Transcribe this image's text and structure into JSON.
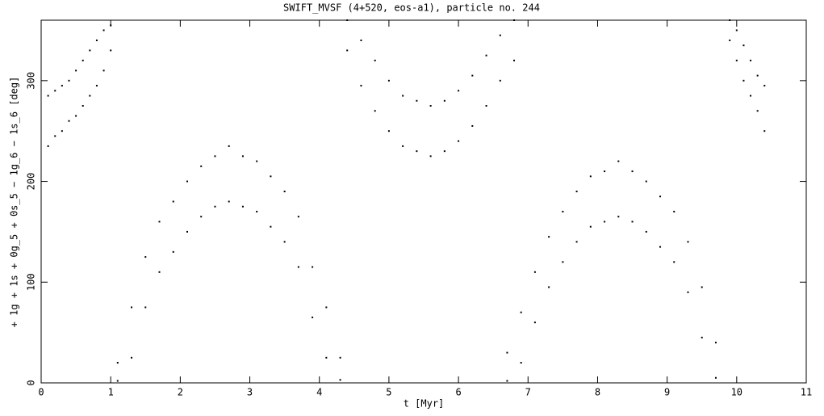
{
  "chart_data": {
    "type": "scatter",
    "title": "SWIFT_MVSF (4+520, eos-a1), particle no. 244",
    "x_label": "t [Myr]",
    "y_label": "+ 1g + 1s + 0g_5 + 0s_5 − 1g_6 − 1s_6 [deg]",
    "color": "#000000",
    "xlim": [
      0,
      11
    ],
    "ylim": [
      0,
      360
    ],
    "xticks": [
      0,
      1,
      2,
      3,
      4,
      5,
      6,
      7,
      8,
      9,
      10,
      11
    ],
    "yticks": [
      0,
      100,
      200,
      300
    ],
    "x": [
      0.1,
      0.1,
      0.2,
      0.2,
      0.3,
      0.3,
      0.4,
      0.4,
      0.5,
      0.5,
      0.6,
      0.6,
      0.7,
      0.7,
      0.8,
      0.8,
      0.9,
      0.9,
      1.0,
      1.0,
      1.1,
      1.1,
      1.3,
      1.3,
      1.5,
      1.5,
      1.7,
      1.7,
      1.9,
      1.9,
      2.1,
      2.1,
      2.3,
      2.3,
      2.5,
      2.5,
      2.7,
      2.7,
      2.9,
      2.9,
      3.1,
      3.1,
      3.3,
      3.3,
      3.5,
      3.5,
      3.7,
      3.7,
      3.9,
      3.9,
      4.1,
      4.1,
      4.3,
      4.3,
      4.4,
      4.4,
      4.6,
      4.6,
      4.8,
      4.8,
      5.0,
      5.0,
      5.2,
      5.2,
      5.4,
      5.4,
      5.6,
      5.6,
      5.8,
      5.8,
      6.0,
      6.0,
      6.2,
      6.2,
      6.4,
      6.4,
      6.6,
      6.6,
      6.8,
      6.8,
      6.7,
      6.7,
      6.9,
      6.9,
      7.1,
      7.1,
      7.3,
      7.3,
      7.5,
      7.5,
      7.7,
      7.7,
      7.9,
      7.9,
      8.1,
      8.1,
      8.3,
      8.3,
      8.5,
      8.5,
      8.7,
      8.7,
      8.9,
      8.9,
      9.1,
      9.1,
      9.3,
      9.3,
      9.5,
      9.5,
      9.7,
      9.7,
      9.9,
      9.9,
      10.0,
      10.0,
      10.1,
      10.1,
      10.2,
      10.2,
      10.3,
      10.3,
      10.4,
      10.4
    ],
    "y": [
      285,
      235,
      290,
      245,
      295,
      250,
      300,
      260,
      310,
      265,
      320,
      275,
      330,
      285,
      340,
      295,
      350,
      310,
      355,
      330,
      20,
      2,
      75,
      25,
      125,
      75,
      160,
      110,
      180,
      130,
      200,
      150,
      215,
      165,
      225,
      175,
      235,
      180,
      225,
      175,
      220,
      170,
      205,
      155,
      190,
      140,
      165,
      115,
      115,
      65,
      75,
      25,
      25,
      3,
      360,
      330,
      340,
      295,
      320,
      270,
      300,
      250,
      285,
      235,
      280,
      230,
      275,
      225,
      280,
      230,
      290,
      240,
      305,
      255,
      325,
      275,
      345,
      300,
      360,
      320,
      30,
      2,
      70,
      20,
      110,
      60,
      145,
      95,
      170,
      120,
      190,
      140,
      205,
      155,
      210,
      160,
      220,
      165,
      210,
      160,
      200,
      150,
      185,
      135,
      170,
      120,
      140,
      90,
      95,
      45,
      40,
      5,
      360,
      340,
      350,
      320,
      335,
      300,
      320,
      285,
      305,
      270,
      295,
      250
    ]
  }
}
